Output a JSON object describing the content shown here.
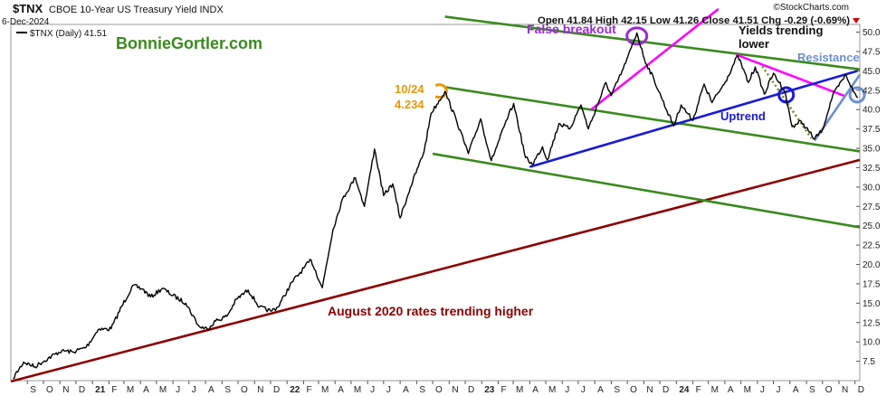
{
  "header": {
    "symbol": "$TNX",
    "description": "CBOE 10-Year US Treasury Yield INDX",
    "date": "6-Dec-2024",
    "legend_label": "$TNX (Daily) 41.51",
    "ohlc": "Open 41.84  High 42.15  Low 41.26  Close 41.51  Chg -0.29 (-0.69%)",
    "attribution": "©StockCharts.com",
    "watermark": "BonnieGortler.com"
  },
  "colors": {
    "price": "#000000",
    "green_channel": "#3a8a1e",
    "magenta": "#ff00ff",
    "blue": "#1a1ad6",
    "steel_blue": "#6f8fcc",
    "dark_red": "#8b0000",
    "orange": "#e8960c",
    "purple": "#9a2bd8",
    "olive_dotted": "#6b8e23",
    "watermark": "#3a8a1e",
    "down_triangle": "#cc0000"
  },
  "annotations": {
    "false_breakout": "False breakout",
    "yields_trending_lower": [
      "Yields trending",
      "lower"
    ],
    "resistance": "Resistance",
    "uptrend": "Uptrend",
    "high_label": [
      "10/24",
      "4.234"
    ],
    "long_term": "August 2020 rates trending higher"
  },
  "chart_data": {
    "type": "line",
    "title": "$TNX CBOE 10-Year US Treasury Yield INDX",
    "series": [
      {
        "name": "$TNX (Daily)",
        "points": [
          [
            "2020-08-05",
            5.3
          ],
          [
            "2020-08-25",
            7.4
          ],
          [
            "2020-09-15",
            6.8
          ],
          [
            "2020-10-10",
            7.9
          ],
          [
            "2020-11-05",
            8.9
          ],
          [
            "2020-11-25",
            8.7
          ],
          [
            "2020-12-20",
            9.3
          ],
          [
            "2021-01-12",
            11.6
          ],
          [
            "2021-02-05",
            11.7
          ],
          [
            "2021-02-25",
            14.6
          ],
          [
            "2021-03-18",
            17.3
          ],
          [
            "2021-04-05",
            16.8
          ],
          [
            "2021-04-20",
            15.8
          ],
          [
            "2021-05-12",
            16.9
          ],
          [
            "2021-06-01",
            16.0
          ],
          [
            "2021-06-25",
            15.0
          ],
          [
            "2021-07-20",
            12.0
          ],
          [
            "2021-08-04",
            11.7
          ],
          [
            "2021-08-20",
            12.7
          ],
          [
            "2021-09-10",
            13.3
          ],
          [
            "2021-09-28",
            15.5
          ],
          [
            "2021-10-20",
            16.7
          ],
          [
            "2021-11-10",
            14.5
          ],
          [
            "2021-12-01",
            14.0
          ],
          [
            "2021-12-15",
            14.5
          ],
          [
            "2022-01-10",
            17.7
          ],
          [
            "2022-02-15",
            20.6
          ],
          [
            "2022-03-08",
            17.0
          ],
          [
            "2022-03-28",
            24.5
          ],
          [
            "2022-04-15",
            28.5
          ],
          [
            "2022-05-09",
            31.2
          ],
          [
            "2022-05-26",
            27.5
          ],
          [
            "2022-06-14",
            34.9
          ],
          [
            "2022-07-01",
            28.9
          ],
          [
            "2022-07-18",
            30.4
          ],
          [
            "2022-08-01",
            26.0
          ],
          [
            "2022-08-20",
            29.9
          ],
          [
            "2022-09-15",
            34.6
          ],
          [
            "2022-09-28",
            39.5
          ],
          [
            "2022-10-24",
            42.34
          ],
          [
            "2022-11-15",
            38.5
          ],
          [
            "2022-12-07",
            34.3
          ],
          [
            "2022-12-30",
            38.8
          ],
          [
            "2023-01-19",
            33.4
          ],
          [
            "2023-02-20",
            39.2
          ],
          [
            "2023-03-02",
            40.8
          ],
          [
            "2023-03-24",
            33.8
          ],
          [
            "2023-04-06",
            32.9
          ],
          [
            "2023-04-25",
            35.2
          ],
          [
            "2023-05-04",
            33.5
          ],
          [
            "2023-05-26",
            38.2
          ],
          [
            "2023-06-15",
            37.5
          ],
          [
            "2023-07-06",
            40.6
          ],
          [
            "2023-07-20",
            37.5
          ],
          [
            "2023-08-22",
            43.5
          ],
          [
            "2023-09-01",
            41.8
          ],
          [
            "2023-09-28",
            46.0
          ],
          [
            "2023-10-19",
            49.9
          ],
          [
            "2023-11-02",
            46.5
          ],
          [
            "2023-11-20",
            43.9
          ],
          [
            "2023-12-06",
            41.2
          ],
          [
            "2023-12-27",
            37.9
          ],
          [
            "2024-01-10",
            40.6
          ],
          [
            "2024-02-01",
            38.6
          ],
          [
            "2024-02-22",
            43.3
          ],
          [
            "2024-03-08",
            40.9
          ],
          [
            "2024-04-02",
            43.6
          ],
          [
            "2024-04-25",
            47.0
          ],
          [
            "2024-05-15",
            43.5
          ],
          [
            "2024-05-28",
            45.5
          ],
          [
            "2024-06-14",
            42.0
          ],
          [
            "2024-07-01",
            44.7
          ],
          [
            "2024-07-22",
            42.4
          ],
          [
            "2024-08-05",
            37.8
          ],
          [
            "2024-08-22",
            38.5
          ],
          [
            "2024-09-16",
            36.2
          ],
          [
            "2024-10-01",
            37.4
          ],
          [
            "2024-10-20",
            41.8
          ],
          [
            "2024-11-14",
            44.5
          ],
          [
            "2024-11-27",
            42.5
          ],
          [
            "2024-12-06",
            41.51
          ]
        ]
      }
    ],
    "ylim": [
      5,
      51
    ],
    "y_ticks": [
      7.5,
      10.0,
      12.5,
      15.0,
      17.5,
      20.0,
      22.5,
      25.0,
      27.5,
      30.0,
      32.5,
      35.0,
      37.5,
      40.0,
      42.5,
      45.0,
      47.5,
      50.0
    ],
    "xlim": [
      "2020-08-01",
      "2024-12-10"
    ],
    "x_ticks": [
      [
        "2020-09-01",
        "S"
      ],
      [
        "2020-10-01",
        "O"
      ],
      [
        "2020-11-01",
        "N"
      ],
      [
        "2020-12-01",
        "D"
      ],
      [
        "2021-01-01",
        "21"
      ],
      [
        "2021-02-01",
        "F"
      ],
      [
        "2021-03-01",
        "M"
      ],
      [
        "2021-04-01",
        "A"
      ],
      [
        "2021-05-01",
        "M"
      ],
      [
        "2021-06-01",
        "J"
      ],
      [
        "2021-07-01",
        "J"
      ],
      [
        "2021-08-01",
        "A"
      ],
      [
        "2021-09-01",
        "S"
      ],
      [
        "2021-10-01",
        "O"
      ],
      [
        "2021-11-01",
        "N"
      ],
      [
        "2021-12-01",
        "D"
      ],
      [
        "2022-01-01",
        "22"
      ],
      [
        "2022-02-01",
        "F"
      ],
      [
        "2022-03-01",
        "M"
      ],
      [
        "2022-04-01",
        "A"
      ],
      [
        "2022-05-01",
        "M"
      ],
      [
        "2022-06-01",
        "J"
      ],
      [
        "2022-07-01",
        "J"
      ],
      [
        "2022-08-01",
        "A"
      ],
      [
        "2022-09-01",
        "S"
      ],
      [
        "2022-10-01",
        "O"
      ],
      [
        "2022-11-01",
        "N"
      ],
      [
        "2022-12-01",
        "D"
      ],
      [
        "2023-01-01",
        "23"
      ],
      [
        "2023-02-01",
        "F"
      ],
      [
        "2023-03-01",
        "M"
      ],
      [
        "2023-04-01",
        "A"
      ],
      [
        "2023-05-01",
        "M"
      ],
      [
        "2023-06-01",
        "J"
      ],
      [
        "2023-07-01",
        "J"
      ],
      [
        "2023-08-01",
        "A"
      ],
      [
        "2023-09-01",
        "S"
      ],
      [
        "2023-10-01",
        "O"
      ],
      [
        "2023-11-01",
        "N"
      ],
      [
        "2023-12-01",
        "D"
      ],
      [
        "2024-01-01",
        "24"
      ],
      [
        "2024-02-01",
        "F"
      ],
      [
        "2024-03-01",
        "M"
      ],
      [
        "2024-04-01",
        "A"
      ],
      [
        "2024-05-01",
        "M"
      ],
      [
        "2024-06-01",
        "J"
      ],
      [
        "2024-07-01",
        "J"
      ],
      [
        "2024-08-01",
        "A"
      ],
      [
        "2024-09-01",
        "S"
      ],
      [
        "2024-10-01",
        "O"
      ],
      [
        "2024-11-01",
        "N"
      ],
      [
        "2024-12-01",
        "D"
      ]
    ],
    "y_axis_side": "right",
    "grid": false,
    "trendlines": [
      {
        "id": "long-term-support",
        "color": "dark_red",
        "from": [
          "2020-08-01",
          4.9
        ],
        "to": [
          "2024-12-10",
          33.5
        ]
      },
      {
        "id": "upper-channel-top",
        "color": "green_channel",
        "from": [
          "2022-10-24",
          52.0
        ],
        "to": [
          "2024-12-10",
          45.2
        ]
      },
      {
        "id": "middle-channel",
        "color": "green_channel",
        "from": [
          "2022-10-24",
          42.9
        ],
        "to": [
          "2024-12-10",
          34.6
        ]
      },
      {
        "id": "lower-channel",
        "color": "green_channel",
        "from": [
          "2022-10-01",
          34.3
        ],
        "to": [
          "2024-12-10",
          24.8
        ]
      },
      {
        "id": "magenta-steep",
        "color": "magenta",
        "from": [
          "2023-07-25",
          40.0
        ],
        "to": [
          "2024-03-20",
          53.0
        ]
      },
      {
        "id": "magenta-short",
        "color": "magenta",
        "from": [
          "2024-04-22",
          47.1
        ],
        "to": [
          "2024-11-14",
          41.7
        ]
      },
      {
        "id": "blue-uptrend",
        "color": "blue",
        "from": [
          "2023-04-01",
          32.6
        ],
        "to": [
          "2024-12-06",
          45.0
        ]
      },
      {
        "id": "steel-blue-rise",
        "color": "steel_blue",
        "from": [
          "2024-09-16",
          36.0
        ],
        "to": [
          "2024-12-10",
          44.5
        ]
      },
      {
        "id": "olive-dotted",
        "color": "olive_dotted",
        "style": "dotted",
        "from": [
          "2024-06-10",
          45.6
        ],
        "to": [
          "2024-09-10",
          36.3
        ]
      }
    ],
    "markers": [
      {
        "id": "false-breakout-circle",
        "color": "purple",
        "at": [
          "2023-10-19",
          49.5
        ]
      },
      {
        "id": "october-high-circle",
        "color": "orange",
        "at": [
          "2022-10-20",
          42.4
        ]
      },
      {
        "id": "breakdown-circle",
        "color": "blue",
        "at": [
          "2024-07-25",
          41.9
        ]
      },
      {
        "id": "current-circle",
        "color": "steel_blue",
        "at": [
          "2024-12-05",
          41.9
        ]
      }
    ]
  }
}
